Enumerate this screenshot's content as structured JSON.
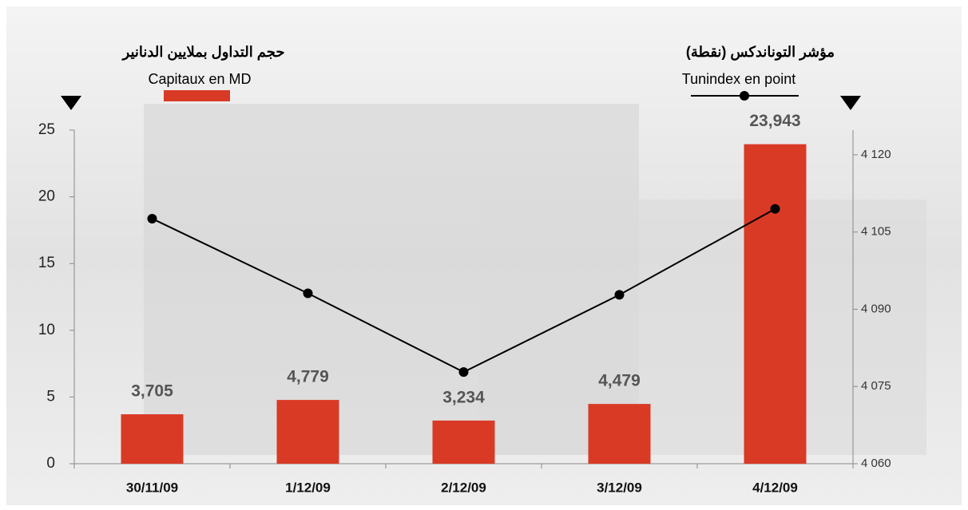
{
  "chart_data": {
    "type": "bar-line",
    "y_label": "حجم التداول بملايين الدنانير",
    "y2_label": "مؤشر التوناندكس (نقطة)",
    "categories": [
      "30/11/09",
      "1/12/09",
      "2/12/09",
      "3/12/09",
      "4/12/09"
    ],
    "series": [
      {
        "name": "Capitaux en MD",
        "color": "#d93a26",
        "type": "bar",
        "values": [
          3.705,
          4.779,
          3.234,
          4.479,
          23.943
        ],
        "value_labels": [
          "3,705",
          "4,779",
          "3,234",
          "4,479",
          "23,943"
        ]
      },
      {
        "name": "Tunindex en point",
        "color": "#000000",
        "type": "line",
        "axis": "y2",
        "values": [
          4107.6,
          4093.1,
          4077.8,
          4092.8,
          4109.5
        ]
      }
    ],
    "ylim": [
      0,
      25
    ],
    "yticks": [
      0,
      5,
      10,
      15,
      20,
      25
    ],
    "y2lim": [
      4060,
      4124.8
    ],
    "y2ticks": [
      {
        "value": 4060,
        "label": "4 060"
      },
      {
        "value": 4075,
        "label": "4 075"
      },
      {
        "value": 4090,
        "label": "4 090"
      },
      {
        "value": 4105,
        "label": "4 105"
      },
      {
        "value": 4120,
        "label": "4 120"
      }
    ]
  }
}
